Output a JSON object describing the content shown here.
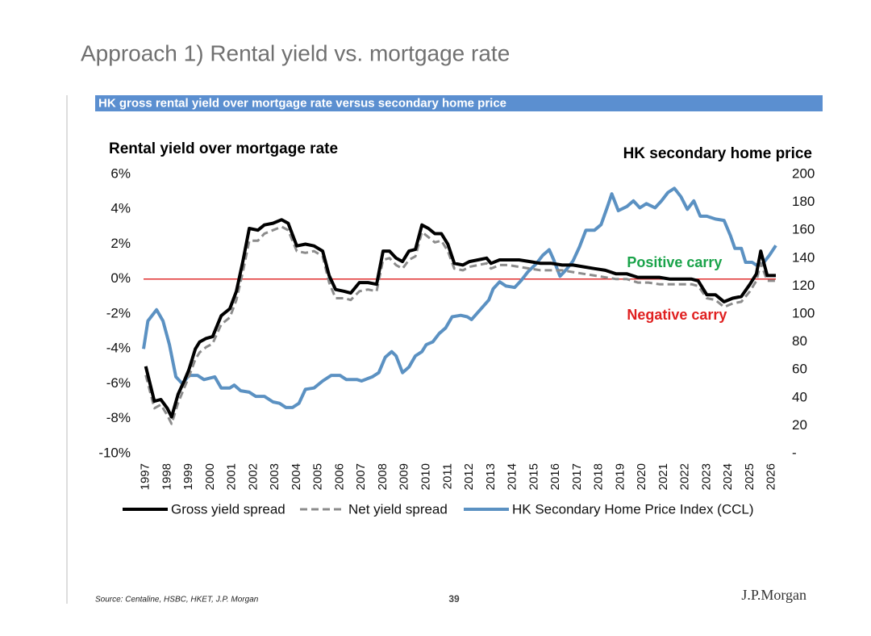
{
  "slide": {
    "title": "Approach 1) Rental yield vs. mortgage rate",
    "source": "Source: Centaline, HSBC, HKET, J.P. Morgan",
    "page_number": "39",
    "logo": "J.P.Morgan"
  },
  "chart_data": {
    "type": "line",
    "title": "HK gross rental yield over mortgage rate versus secondary home price",
    "ylabel": "Rental yield over mortgage rate",
    "y2label": "HK secondary home price",
    "annotations": [
      {
        "text": "Positive carry",
        "color": "#1aa34a",
        "x": 2019.3,
        "y": 0.9
      },
      {
        "text": "Negative carry",
        "color": "#e02020",
        "x": 2019.3,
        "y": -2.1
      }
    ],
    "hline": {
      "value": 0,
      "color": "#e03030"
    },
    "xlim": [
      1996.9,
      2026.2
    ],
    "xticks": [
      1997,
      1998,
      1999,
      2000,
      2001,
      2002,
      2003,
      2004,
      2005,
      2006,
      2007,
      2008,
      2009,
      2010,
      2011,
      2012,
      2013,
      2014,
      2015,
      2016,
      2017,
      2018,
      2019,
      2020,
      2021,
      2022,
      2023,
      2024,
      2025,
      2026
    ],
    "ylim": [
      -10,
      6
    ],
    "yticks": [
      {
        "value": 6,
        "label": "6%"
      },
      {
        "value": 4,
        "label": "4%"
      },
      {
        "value": 2,
        "label": "2%"
      },
      {
        "value": 0,
        "label": "0%"
      },
      {
        "value": -2,
        "label": "-2%"
      },
      {
        "value": -4,
        "label": "-4%"
      },
      {
        "value": -6,
        "label": "-6%"
      },
      {
        "value": -8,
        "label": "-8%"
      },
      {
        "value": -10,
        "label": "-10%"
      }
    ],
    "y2lim": [
      0,
      200
    ],
    "y2ticks": [
      200,
      180,
      160,
      140,
      120,
      100,
      80,
      60,
      40,
      20,
      {
        "value": 0,
        "label": "-"
      }
    ],
    "series": [
      {
        "name": "Gross yield spread",
        "color": "#000000",
        "dash": false,
        "x": [
          1997.0,
          1997.4,
          1997.7,
          1998.0,
          1998.2,
          1998.5,
          1998.8,
          1999.0,
          1999.3,
          1999.5,
          1999.8,
          2000.1,
          2000.5,
          2000.9,
          2001.2,
          2001.5,
          2001.8,
          2002.2,
          2002.5,
          2002.9,
          2003.3,
          2003.6,
          2004.0,
          2004.4,
          2004.8,
          2005.2,
          2005.5,
          2005.8,
          2006.2,
          2006.5,
          2006.9,
          2007.3,
          2007.7,
          2008.0,
          2008.3,
          2008.6,
          2008.9,
          2009.2,
          2009.5,
          2009.8,
          2010.1,
          2010.4,
          2010.7,
          2011.0,
          2011.3,
          2011.7,
          2012.0,
          2012.4,
          2012.8,
          2013.0,
          2013.4,
          2013.8,
          2014.3,
          2014.8,
          2015.3,
          2015.8,
          2016.3,
          2016.8,
          2017.3,
          2017.8,
          2018.3,
          2018.8,
          2019.3,
          2019.8,
          2020.3,
          2020.8,
          2021.3,
          2021.8,
          2022.3,
          2022.6,
          2023.0,
          2023.4,
          2023.8,
          2024.2,
          2024.6,
          2025.0,
          2025.3,
          2025.5,
          2025.8,
          2026.2
        ],
        "values": [
          -5.0,
          -7.0,
          -6.9,
          -7.4,
          -7.9,
          -6.6,
          -5.8,
          -5.2,
          -4.0,
          -3.6,
          -3.4,
          -3.3,
          -2.1,
          -1.7,
          -0.7,
          1.0,
          2.9,
          2.8,
          3.1,
          3.2,
          3.4,
          3.2,
          1.9,
          2.0,
          1.9,
          1.6,
          0.2,
          -0.6,
          -0.7,
          -0.8,
          -0.2,
          -0.2,
          -0.3,
          1.6,
          1.6,
          1.2,
          1.0,
          1.6,
          1.7,
          3.1,
          2.9,
          2.6,
          2.6,
          2.0,
          0.9,
          0.8,
          1.0,
          1.1,
          1.2,
          0.9,
          1.1,
          1.1,
          1.1,
          1.0,
          0.9,
          0.9,
          0.8,
          0.8,
          0.7,
          0.6,
          0.5,
          0.3,
          0.3,
          0.1,
          0.1,
          0.1,
          0.0,
          0.0,
          0.0,
          -0.1,
          -0.9,
          -0.9,
          -1.3,
          -1.1,
          -1.0,
          -0.3,
          0.3,
          1.6,
          0.2,
          0.2
        ]
      },
      {
        "name": "Net yield spread",
        "color": "#8c8c8c",
        "dash": true,
        "x": [
          1997.0,
          1997.4,
          1997.7,
          1998.0,
          1998.2,
          1998.5,
          1998.8,
          1999.0,
          1999.3,
          1999.5,
          1999.8,
          2000.1,
          2000.5,
          2000.9,
          2001.2,
          2001.5,
          2001.8,
          2002.2,
          2002.5,
          2002.9,
          2003.3,
          2003.6,
          2004.0,
          2004.4,
          2004.8,
          2005.2,
          2005.5,
          2005.8,
          2006.2,
          2006.5,
          2006.9,
          2007.3,
          2007.7,
          2008.0,
          2008.3,
          2008.6,
          2008.9,
          2009.2,
          2009.5,
          2009.8,
          2010.1,
          2010.4,
          2010.7,
          2011.0,
          2011.3,
          2011.7,
          2012.0,
          2012.4,
          2012.8,
          2013.0,
          2013.4,
          2013.8,
          2014.3,
          2014.8,
          2015.3,
          2015.8,
          2016.3,
          2016.8,
          2017.3,
          2017.8,
          2018.3,
          2018.8,
          2019.3,
          2019.8,
          2020.3,
          2020.8,
          2021.3,
          2021.8,
          2022.3,
          2022.6,
          2023.0,
          2023.4,
          2023.8,
          2024.2,
          2024.6,
          2025.0,
          2025.3,
          2025.5,
          2025.8,
          2026.2
        ],
        "values": [
          -5.5,
          -7.4,
          -7.2,
          -7.8,
          -8.3,
          -7.1,
          -6.2,
          -5.6,
          -4.6,
          -4.2,
          -3.9,
          -3.7,
          -2.6,
          -2.2,
          -1.2,
          0.4,
          2.2,
          2.2,
          2.6,
          2.8,
          3.0,
          2.8,
          1.6,
          1.5,
          1.6,
          1.3,
          -0.2,
          -1.1,
          -1.1,
          -1.2,
          -0.7,
          -0.6,
          -0.7,
          1.1,
          1.2,
          0.8,
          0.6,
          1.1,
          1.3,
          2.7,
          2.4,
          2.1,
          2.2,
          1.6,
          0.6,
          0.5,
          0.7,
          0.8,
          0.9,
          0.6,
          0.8,
          0.8,
          0.7,
          0.6,
          0.5,
          0.5,
          0.5,
          0.4,
          0.3,
          0.2,
          0.1,
          0.0,
          0.0,
          -0.2,
          -0.2,
          -0.3,
          -0.3,
          -0.3,
          -0.3,
          -0.4,
          -1.1,
          -1.2,
          -1.6,
          -1.4,
          -1.3,
          -0.7,
          -0.1,
          0.9,
          -0.1,
          -0.1
        ]
      },
      {
        "name": "HK Secondary Home Price Index (CCL)",
        "color": "#5b91c2",
        "dash": false,
        "axis": "y2",
        "x": [
          1996.9,
          1997.1,
          1997.5,
          1997.8,
          1998.1,
          1998.4,
          1998.7,
          1999.0,
          1999.4,
          1999.7,
          2000.2,
          2000.5,
          2000.9,
          2001.1,
          2001.4,
          2001.8,
          2002.1,
          2002.5,
          2002.9,
          2003.2,
          2003.5,
          2003.8,
          2004.1,
          2004.4,
          2004.8,
          2005.2,
          2005.6,
          2006.0,
          2006.3,
          2006.8,
          2007.0,
          2007.5,
          2007.8,
          2008.1,
          2008.4,
          2008.6,
          2008.9,
          2009.2,
          2009.5,
          2009.8,
          2010.0,
          2010.3,
          2010.6,
          2010.9,
          2011.2,
          2011.6,
          2011.9,
          2012.1,
          2012.5,
          2012.9,
          2013.1,
          2013.4,
          2013.7,
          2014.1,
          2014.4,
          2014.7,
          2015.1,
          2015.4,
          2015.7,
          2015.9,
          2016.2,
          2016.5,
          2016.8,
          2017.1,
          2017.4,
          2017.8,
          2018.1,
          2018.4,
          2018.6,
          2018.9,
          2019.3,
          2019.6,
          2019.9,
          2020.2,
          2020.6,
          2020.9,
          2021.2,
          2021.5,
          2021.8,
          2022.1,
          2022.4,
          2022.7,
          2023.0,
          2023.4,
          2023.8,
          2024.1,
          2024.3,
          2024.6,
          2024.8,
          2025.1,
          2025.3,
          2025.6,
          2025.9,
          2026.2
        ],
        "values": [
          75,
          95,
          103,
          95,
          78,
          55,
          50,
          56,
          56,
          53,
          55,
          47,
          47,
          49,
          45,
          44,
          41,
          41,
          37,
          36,
          33,
          33,
          36,
          46,
          47,
          52,
          56,
          56,
          53,
          53,
          52,
          55,
          58,
          69,
          73,
          70,
          58,
          62,
          70,
          73,
          78,
          80,
          86,
          90,
          98,
          99,
          98,
          96,
          103,
          110,
          118,
          123,
          120,
          119,
          124,
          130,
          136,
          142,
          146,
          139,
          127,
          132,
          138,
          148,
          160,
          160,
          164,
          177,
          186,
          174,
          177,
          181,
          176,
          179,
          176,
          181,
          187,
          190,
          184,
          175,
          181,
          170,
          170,
          168,
          167,
          156,
          147,
          147,
          137,
          137,
          135,
          136,
          142,
          149
        ]
      }
    ]
  }
}
